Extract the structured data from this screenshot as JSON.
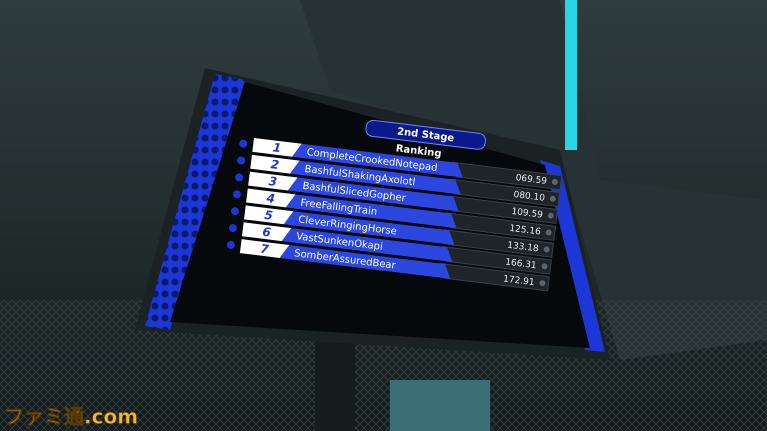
{
  "header": {
    "stage": "2nd Stage",
    "title": "Ranking"
  },
  "rows": [
    {
      "rank": 1,
      "name": "CompleteCrookedNotepad",
      "time": "069.59"
    },
    {
      "rank": 2,
      "name": "BashfulShakingAxolotl",
      "time": "080.10"
    },
    {
      "rank": 3,
      "name": "BashfulSlicedGopher",
      "time": "109.59"
    },
    {
      "rank": 4,
      "name": "FreeFallingTrain",
      "time": "125.16"
    },
    {
      "rank": 5,
      "name": "CleverRingingHorse",
      "time": "133.18"
    },
    {
      "rank": 6,
      "name": "VastSunkenOkapi",
      "time": "166.31"
    },
    {
      "rank": 7,
      "name": "SomberAssuredBear",
      "time": "172.91"
    }
  ],
  "watermark": "ファミ通.com"
}
